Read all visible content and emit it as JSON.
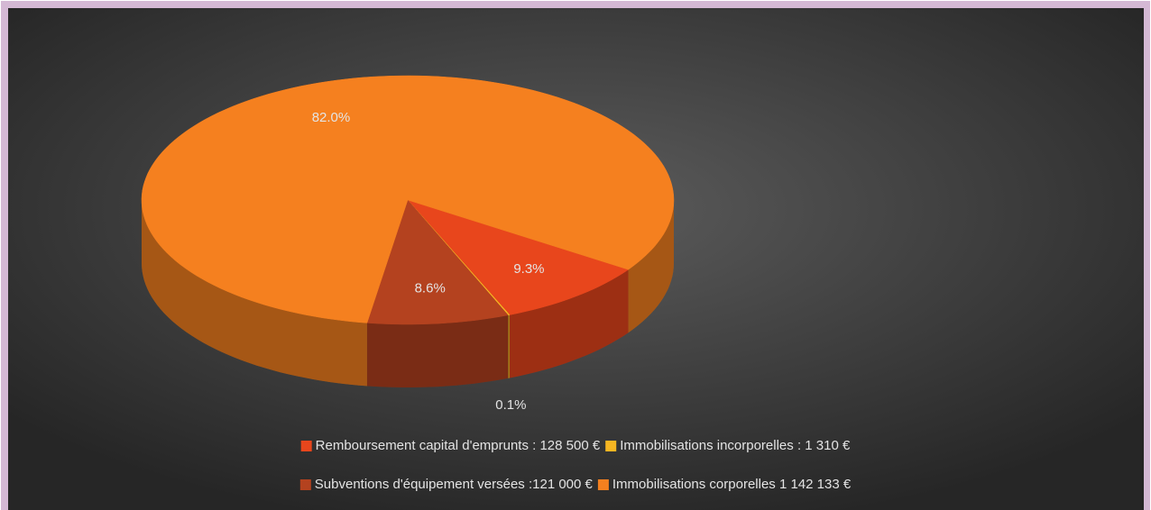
{
  "chart_data": {
    "type": "pie",
    "categories": [
      "Remboursement capital d'emprunts : 128 500 €",
      "Immobilisations incorporelles : 1 310 €",
      "Subventions d'équipement versées :121 000 €",
      "Immobilisations corporelles 1 142 133 €"
    ],
    "values": [
      9.3,
      0.1,
      8.6,
      82.0
    ],
    "value_labels": [
      "9.3%",
      "0.1%",
      "8.6%",
      "82.0%"
    ],
    "colors": [
      "#e8461c",
      "#f6b622",
      "#b4421f",
      "#f5801f"
    ]
  }
}
